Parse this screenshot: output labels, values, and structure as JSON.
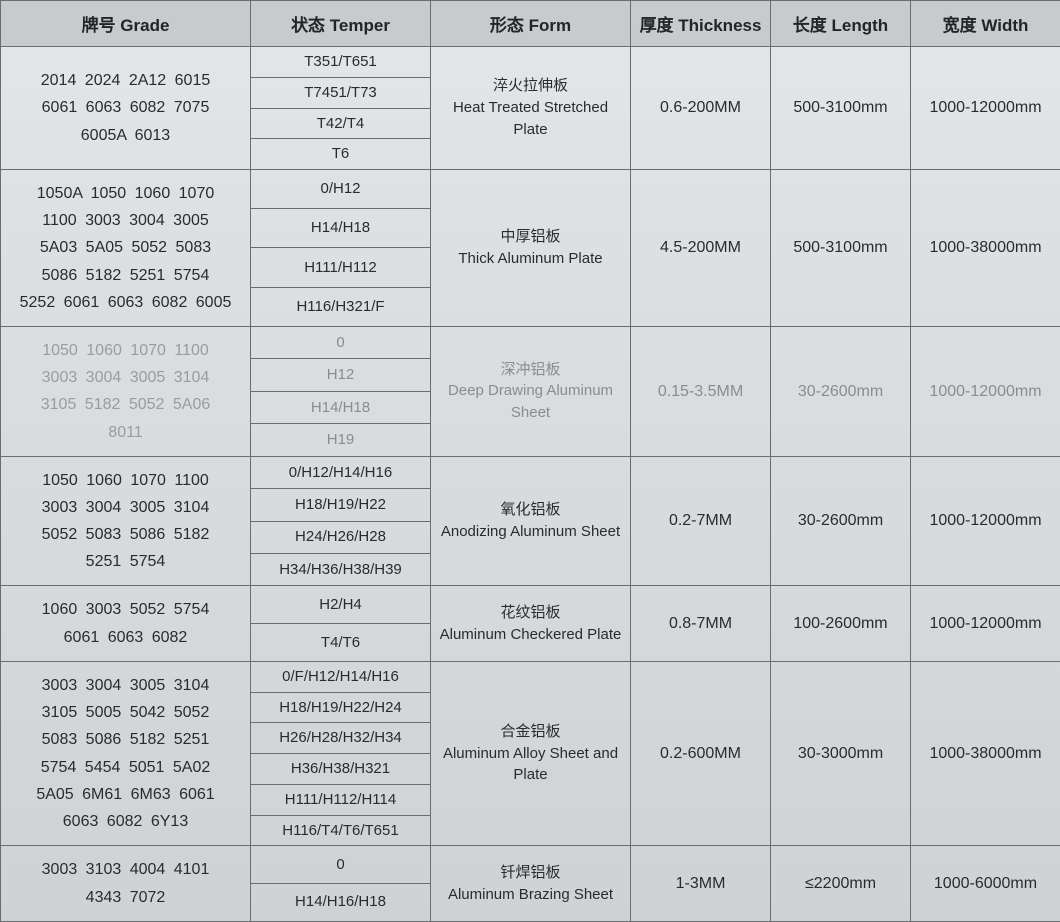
{
  "columns": [
    {
      "label": "牌号 Grade"
    },
    {
      "label": "状态 Temper"
    },
    {
      "label": "形态 Form"
    },
    {
      "label": "厚度 Thickness"
    },
    {
      "label": "长度 Length"
    },
    {
      "label": "宽度 Width"
    }
  ],
  "blocks": [
    {
      "grade": "2014  2024  2A12  6015\n6061  6063  6082  7075\n6005A  6013",
      "tempers": [
        "T351/T651",
        "T7451/T73",
        "T42/T4",
        "T6"
      ],
      "form_cn": "淬火拉伸板",
      "form_en": "Heat Treated Stretched Plate",
      "thickness": "0.6-200MM",
      "length": "500-3100mm",
      "width": "1000-12000mm",
      "glare": false
    },
    {
      "grade": "1050A  1050  1060  1070\n1100  3003  3004  3005\n5A03  5A05  5052  5083\n5086  5182  5251  5754\n5252 6061 6063 6082 6005",
      "tempers": [
        "0/H12",
        "H14/H18",
        "H111/H112",
        "H116/H321/F"
      ],
      "form_cn": "中厚铝板",
      "form_en": "Thick Aluminum Plate",
      "thickness": "4.5-200MM",
      "length": "500-3100mm",
      "width": "1000-38000mm",
      "glare": false
    },
    {
      "grade": "1050  1060  1070  1100\n3003  3004  3005  3104\n3105  5182  5052  5A06\n8011",
      "tempers": [
        "0",
        "H12",
        "H14/H18",
        "H19"
      ],
      "form_cn": "深冲铝板",
      "form_en": "Deep Drawing Aluminum Sheet",
      "thickness": "0.15-3.5MM",
      "length": "30-2600mm",
      "width": "1000-12000mm",
      "glare": true
    },
    {
      "grade": "1050  1060  1070  1100\n3003  3004  3005  3104\n5052  5083  5086  5182\n5251  5754",
      "tempers": [
        "0/H12/H14/H16",
        "H18/H19/H22",
        "H24/H26/H28",
        "H34/H36/H38/H39"
      ],
      "form_cn": "氧化铝板",
      "form_en": "Anodizing Aluminum Sheet",
      "thickness": "0.2-7MM",
      "length": "30-2600mm",
      "width": "1000-12000mm",
      "glare": false
    },
    {
      "grade": "1060  3003  5052  5754\n6061  6063  6082",
      "tempers": [
        "H2/H4",
        "T4/T6"
      ],
      "form_cn": "花纹铝板",
      "form_en": "Aluminum Checkered Plate",
      "thickness": "0.8-7MM",
      "length": "100-2600mm",
      "width": "1000-12000mm",
      "glare": false
    },
    {
      "grade": "3003  3004  3005  3104\n3105  5005  5042  5052\n5083  5086  5182  5251\n5754  5454  5051  5A02\n5A05  6M61  6M63  6061\n6063  6082  6Y13",
      "tempers": [
        "0/F/H12/H14/H16",
        "H18/H19/H22/H24",
        "H26/H28/H32/H34",
        "H36/H38/H321",
        "H111/H112/H114",
        "H116/T4/T6/T651"
      ],
      "form_cn": "合金铝板",
      "form_en": "Aluminum Alloy Sheet and Plate",
      "thickness": "0.2-600MM",
      "length": "30-3000mm",
      "width": "1000-38000mm",
      "glare": false
    },
    {
      "grade": "3003  3103  4004  4101\n4343  7072",
      "tempers": [
        "0",
        "H14/H16/H18"
      ],
      "form_cn": "钎焊铝板",
      "form_en": "Aluminum Brazing Sheet",
      "thickness": "1-3MM",
      "length": "≤2200mm",
      "width": "1000-6000mm",
      "glare": false
    }
  ]
}
